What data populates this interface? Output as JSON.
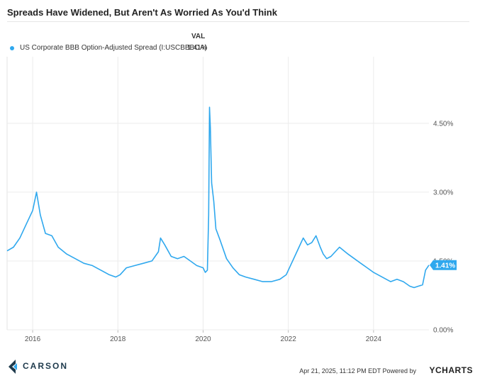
{
  "chart_data": {
    "type": "line",
    "title": "Spreads Have Widened, But Aren't As Worried As You'd Think",
    "value_header": "VAL",
    "legend": [
      {
        "name": "US Corporate BBB Option-Adjusted Spread (I:USCBBBOA)",
        "value": "1.41%"
      }
    ],
    "series": [
      {
        "name": "US Corporate BBB Option-Adjusted Spread (I:USCBBBOA)",
        "color": "#2fa8ee",
        "x": [
          2015.4,
          2015.55,
          2015.7,
          2015.85,
          2016.0,
          2016.09,
          2016.18,
          2016.3,
          2016.45,
          2016.6,
          2016.8,
          2017.0,
          2017.2,
          2017.4,
          2017.6,
          2017.8,
          2017.95,
          2018.05,
          2018.2,
          2018.4,
          2018.6,
          2018.8,
          2018.95,
          2019.0,
          2019.1,
          2019.25,
          2019.4,
          2019.55,
          2019.7,
          2019.85,
          2020.0,
          2020.05,
          2020.1,
          2020.13,
          2020.15,
          2020.17,
          2020.2,
          2020.25,
          2020.3,
          2020.4,
          2020.55,
          2020.7,
          2020.85,
          2021.0,
          2021.2,
          2021.4,
          2021.6,
          2021.8,
          2021.95,
          2022.05,
          2022.15,
          2022.25,
          2022.35,
          2022.45,
          2022.55,
          2022.65,
          2022.75,
          2022.82,
          2022.9,
          2023.0,
          2023.2,
          2023.4,
          2023.55,
          2023.7,
          2023.85,
          2024.0,
          2024.2,
          2024.4,
          2024.55,
          2024.7,
          2024.85,
          2024.95,
          2025.05,
          2025.15,
          2025.22,
          2025.3
        ],
        "values": [
          1.72,
          1.8,
          2.0,
          2.3,
          2.6,
          3.0,
          2.5,
          2.1,
          2.05,
          1.8,
          1.65,
          1.55,
          1.45,
          1.4,
          1.3,
          1.2,
          1.15,
          1.2,
          1.35,
          1.4,
          1.45,
          1.5,
          1.7,
          2.0,
          1.85,
          1.6,
          1.55,
          1.6,
          1.5,
          1.4,
          1.35,
          1.25,
          1.3,
          2.5,
          4.85,
          4.4,
          3.2,
          2.8,
          2.2,
          1.95,
          1.55,
          1.35,
          1.2,
          1.15,
          1.1,
          1.05,
          1.05,
          1.1,
          1.2,
          1.4,
          1.6,
          1.8,
          2.0,
          1.85,
          1.9,
          2.05,
          1.8,
          1.65,
          1.55,
          1.6,
          1.8,
          1.65,
          1.55,
          1.45,
          1.35,
          1.25,
          1.15,
          1.05,
          1.1,
          1.05,
          0.95,
          0.92,
          0.95,
          0.98,
          1.3,
          1.41
        ]
      }
    ],
    "x_ticks": [
      {
        "value": 2016,
        "label": "2016"
      },
      {
        "value": 2018,
        "label": "2018"
      },
      {
        "value": 2020,
        "label": "2020"
      },
      {
        "value": 2022,
        "label": "2022"
      },
      {
        "value": 2024,
        "label": "2024"
      }
    ],
    "y_ticks": [
      {
        "value": 0,
        "label": "0.00%"
      },
      {
        "value": 1.5,
        "label": "1.50%"
      },
      {
        "value": 3.0,
        "label": "3.00%"
      },
      {
        "value": 4.5,
        "label": "4.50%"
      }
    ],
    "xlim": [
      2015.4,
      2025.3
    ],
    "ylim": [
      0,
      5.95
    ],
    "last_value_label": "1.41%",
    "grid": true,
    "legend_position": "top-left"
  },
  "branding": {
    "logo_text": "CARSON",
    "footer": "Apr 21, 2025, 11:12 PM EDT Powered by",
    "provider": "YCHARTS",
    "colors": {
      "logo": "#1e3a4c",
      "accent": "#2fa8ee"
    }
  }
}
